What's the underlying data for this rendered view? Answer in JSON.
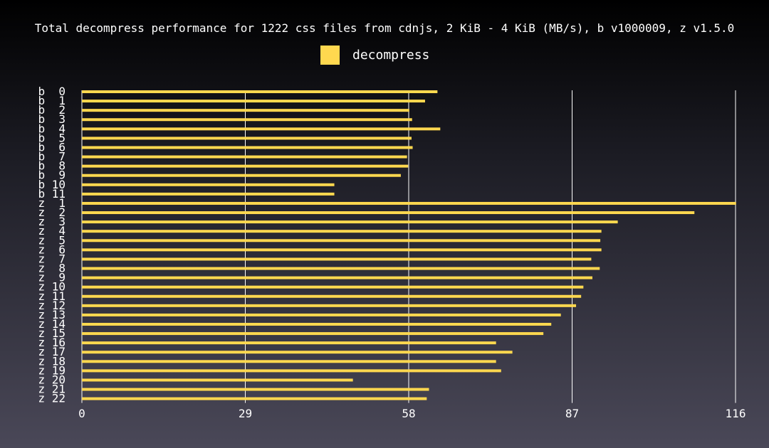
{
  "chart_data": {
    "type": "bar",
    "orientation": "horizontal",
    "title": "Total decompress performance for 1222 css files from cdnjs, 2 KiB - 4 KiB (MB/s), b v1000009, z v1.5.0",
    "legend": [
      {
        "name": "decompress",
        "color": "#ffd84f"
      }
    ],
    "legend_placement": "top-center",
    "categories": [
      "b  0",
      "b  1",
      "b  2",
      "b  3",
      "b  4",
      "b  5",
      "b  6",
      "b  7",
      "b  8",
      "b  9",
      "b 10",
      "b 11",
      "z  1",
      "z  2",
      "z  3",
      "z  4",
      "z  5",
      "z  6",
      "z  7",
      "z  8",
      "z  9",
      "z 10",
      "z 11",
      "z 12",
      "z 13",
      "z 14",
      "z 15",
      "z 16",
      "z 17",
      "z 18",
      "z 19",
      "z 20",
      "z 21",
      "z 22"
    ],
    "series": [
      {
        "name": "decompress",
        "color": "#ffd84f",
        "values": [
          63.1,
          60.9,
          58.1,
          58.6,
          63.6,
          58.5,
          58.7,
          57.7,
          57.9,
          56.6,
          44.8,
          44.8,
          116.1,
          108.7,
          95.1,
          92.2,
          92.0,
          92.2,
          90.4,
          91.9,
          90.6,
          89.0,
          88.6,
          87.7,
          85.0,
          83.3,
          81.9,
          73.5,
          76.4,
          73.5,
          74.4,
          48.1,
          61.6,
          61.2
        ]
      }
    ],
    "xticks": [
      "0",
      "29",
      "58",
      "87",
      "116"
    ],
    "xlim": [
      0,
      116
    ],
    "grid": true,
    "xlabel": "",
    "ylabel": ""
  }
}
